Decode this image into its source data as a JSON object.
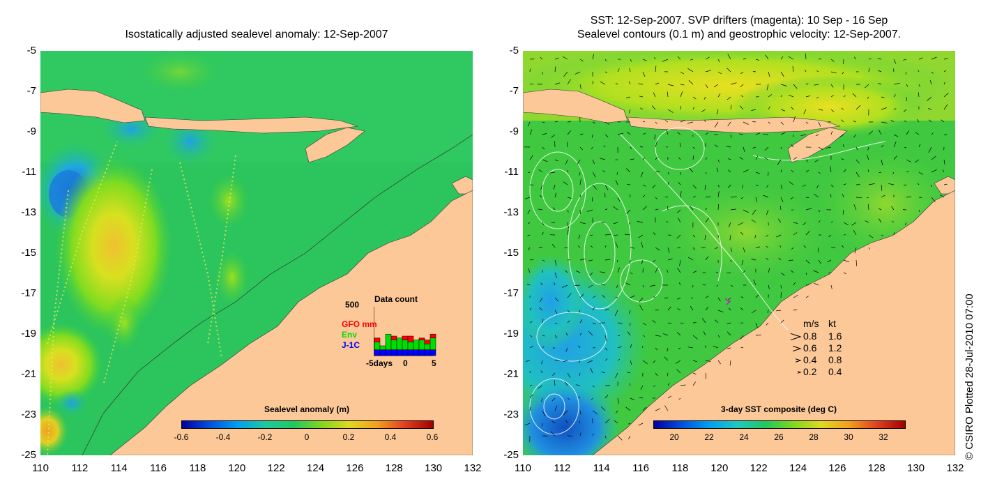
{
  "left_panel": {
    "title": "Isostatically adjusted sealevel anomaly: 12-Sep-2007",
    "colorbar": {
      "title": "Sealevel anomaly (m)",
      "ticks": [
        "-0.6",
        "-0.4",
        "-0.2",
        "0",
        "0.2",
        "0.4",
        "0.6"
      ]
    },
    "data_count": {
      "title": "Data count",
      "y_max_label": "500",
      "series": [
        {
          "name": "GFO mm",
          "color": "#ff0000"
        },
        {
          "name": "Env",
          "color": "#00dd00"
        },
        {
          "name": "J-1C",
          "color": "#0000ff"
        }
      ],
      "x_ticks": [
        "-5days",
        "0",
        "5"
      ],
      "bars": [
        {
          "j1c": 60,
          "env": 80,
          "gfo": 40
        },
        {
          "j1c": 60,
          "env": 40,
          "gfo": 0
        },
        {
          "j1c": 60,
          "env": 160,
          "gfo": 0
        },
        {
          "j1c": 60,
          "env": 100,
          "gfo": 40
        },
        {
          "j1c": 60,
          "env": 120,
          "gfo": 0
        },
        {
          "j1c": 60,
          "env": 100,
          "gfo": 40
        },
        {
          "j1c": 60,
          "env": 80,
          "gfo": 60
        },
        {
          "j1c": 60,
          "env": 100,
          "gfo": 0
        },
        {
          "j1c": 60,
          "env": 100,
          "gfo": 20
        },
        {
          "j1c": 60,
          "env": 60,
          "gfo": 40
        },
        {
          "j1c": 60,
          "env": 120,
          "gfo": 40
        }
      ]
    }
  },
  "right_panel": {
    "title_line1": "SST: 12-Sep-2007. SVP drifters (magenta): 10 Sep - 16 Sep",
    "title_line2": "Sealevel contours (0.1 m) and geostrophic velocity: 12-Sep-2007.",
    "colorbar": {
      "title": "3-day SST composite (deg C)",
      "ticks": [
        "20",
        "22",
        "24",
        "26",
        "28",
        "30",
        "32"
      ]
    },
    "velocity_legend": {
      "header_ms": "m/s",
      "header_kt": "kt",
      "rows": [
        {
          "ms": "0.8",
          "kt": "1.6"
        },
        {
          "ms": "0.6",
          "kt": "1.2"
        },
        {
          "ms": "0.4",
          "kt": "0.8"
        },
        {
          "ms": "0.2",
          "kt": "0.4"
        }
      ]
    },
    "copyright": "© CSIRO Plotted 28-Jul-2010 07:00"
  },
  "axes": {
    "lat_labels": [
      "-5",
      "-7",
      "-9",
      "-11",
      "-13",
      "-15",
      "-17",
      "-19",
      "-21",
      "-23",
      "-25"
    ],
    "lon_labels": [
      "110",
      "112",
      "114",
      "116",
      "118",
      "120",
      "122",
      "124",
      "126",
      "128",
      "130",
      "132"
    ],
    "lat_range": [
      -25,
      -5
    ],
    "lon_range": [
      110,
      132
    ]
  },
  "colors": {
    "land": "#fcc898",
    "sla_base": "#22c85a",
    "sst_base": "#3cc83c"
  }
}
